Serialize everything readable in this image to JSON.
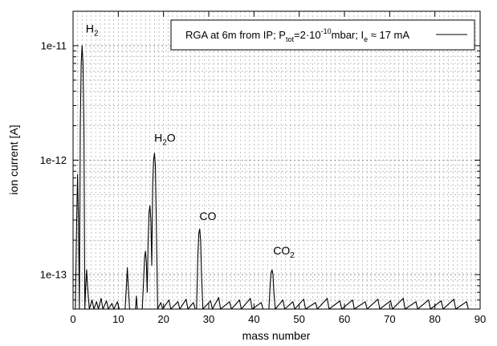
{
  "chart_data": {
    "type": "line",
    "xlabel": "mass number",
    "ylabel": "ion current [A]",
    "xlim": [
      0,
      90
    ],
    "ylim": [
      5e-14,
      2e-11
    ],
    "y_scale": "log",
    "grid": true,
    "legend_position": "top-right",
    "x_ticks": [
      0,
      10,
      20,
      30,
      40,
      50,
      60,
      70,
      80,
      90
    ],
    "x_tick_labels": [
      "0",
      "10",
      "20",
      "30",
      "40",
      "50",
      "60",
      "70",
      "80",
      "90"
    ],
    "y_ticks": [
      1e-13,
      1e-12,
      1e-11
    ],
    "y_tick_labels": [
      "1e-13",
      "1e-12",
      "1e-11"
    ],
    "legend": {
      "text_a": "RGA at 6m from IP;  P",
      "sub_a": "tot",
      "text_b": "=2·10",
      "sup_b": "-10",
      "text_c": "mbar; I",
      "sub_c": "e",
      "text_d": " ≈ 17 mA"
    },
    "annotations": [
      {
        "base": "H",
        "sub": "2",
        "suffix": "",
        "x": 4.2,
        "y": 1.3e-11
      },
      {
        "base": "H",
        "sub": "2",
        "suffix": "O",
        "x": 20.3,
        "y": 1.45e-12
      },
      {
        "base": "CO",
        "sub": "",
        "suffix": "",
        "x": 29.8,
        "y": 3e-13
      },
      {
        "base": "CO",
        "sub": "2",
        "suffix": "",
        "x": 46.6,
        "y": 1.5e-13
      }
    ],
    "peaks": [
      {
        "mass": 1,
        "value": 7.5e-13
      },
      {
        "mass": 2,
        "value": 1e-11
      },
      {
        "mass": 3,
        "value": 1.1e-13
      },
      {
        "mass": 12,
        "value": 1.15e-13
      },
      {
        "mass": 14,
        "value": 6.5e-14
      },
      {
        "mass": 16,
        "value": 1.6e-13
      },
      {
        "mass": 17,
        "value": 4e-13
      },
      {
        "mass": 18,
        "value": 1.15e-12
      },
      {
        "mass": 28,
        "value": 2.5e-13
      },
      {
        "mass": 44,
        "value": 1.1e-13
      }
    ],
    "series": [
      {
        "values": [
          [
            0.5,
            5e-14
          ],
          [
            0.8,
            3e-13
          ],
          [
            1.0,
            7.5e-13
          ],
          [
            1.2,
            3e-13
          ],
          [
            1.4,
            5e-14
          ],
          [
            1.6,
            2e-12
          ],
          [
            1.8,
            7e-12
          ],
          [
            2.0,
            1e-11
          ],
          [
            2.2,
            7e-12
          ],
          [
            2.4,
            2e-12
          ],
          [
            2.6,
            5e-14
          ],
          [
            2.8,
            8e-14
          ],
          [
            3.0,
            1.1e-13
          ],
          [
            3.2,
            8e-14
          ],
          [
            3.4,
            6.2e-14
          ],
          [
            3.6,
            5e-14
          ],
          [
            4.2,
            6e-14
          ],
          [
            4.6,
            5e-14
          ],
          [
            5.2,
            5.8e-14
          ],
          [
            5.6,
            5e-14
          ],
          [
            6.2,
            6.2e-14
          ],
          [
            6.6,
            5e-14
          ],
          [
            7.4,
            5.9e-14
          ],
          [
            7.8,
            5e-14
          ],
          [
            8.6,
            5.6e-14
          ],
          [
            9.0,
            5e-14
          ],
          [
            9.8,
            5.8e-14
          ],
          [
            10.2,
            5e-14
          ],
          [
            11.5,
            5e-14
          ],
          [
            11.8,
            8e-14
          ],
          [
            12.0,
            1.15e-13
          ],
          [
            12.2,
            8e-14
          ],
          [
            12.5,
            5e-14
          ],
          [
            13.8,
            5e-14
          ],
          [
            14.0,
            6.5e-14
          ],
          [
            14.2,
            5e-14
          ],
          [
            15.3,
            5e-14
          ],
          [
            15.6,
            9e-14
          ],
          [
            15.8,
            1.4e-13
          ],
          [
            16.0,
            1.6e-13
          ],
          [
            16.2,
            1.3e-13
          ],
          [
            16.4,
            7e-14
          ],
          [
            16.6,
            2e-13
          ],
          [
            16.8,
            3.5e-13
          ],
          [
            17.0,
            4e-13
          ],
          [
            17.2,
            3e-13
          ],
          [
            17.4,
            1.2e-13
          ],
          [
            17.6,
            6e-13
          ],
          [
            17.8,
            1e-12
          ],
          [
            18.0,
            1.15e-12
          ],
          [
            18.2,
            9e-13
          ],
          [
            18.4,
            3e-13
          ],
          [
            18.7,
            5e-14
          ],
          [
            19.4,
            5.7e-14
          ],
          [
            19.8,
            5e-14
          ],
          [
            21.2,
            6e-14
          ],
          [
            21.6,
            5e-14
          ],
          [
            23.2,
            5.8e-14
          ],
          [
            23.6,
            5e-14
          ],
          [
            25.0,
            6.1e-14
          ],
          [
            25.4,
            5e-14
          ],
          [
            26.6,
            5.7e-14
          ],
          [
            27.0,
            5e-14
          ],
          [
            27.3,
            5e-14
          ],
          [
            27.6,
            1.5e-13
          ],
          [
            27.8,
            2.3e-13
          ],
          [
            28.0,
            2.5e-13
          ],
          [
            28.2,
            2e-13
          ],
          [
            28.4,
            1e-13
          ],
          [
            28.7,
            5e-14
          ],
          [
            30.4,
            5.9e-14
          ],
          [
            30.8,
            5e-14
          ],
          [
            32.2,
            6.3e-14
          ],
          [
            32.6,
            5e-14
          ],
          [
            34.6,
            5.8e-14
          ],
          [
            35.0,
            5e-14
          ],
          [
            36.8,
            6e-14
          ],
          [
            37.2,
            5e-14
          ],
          [
            39.2,
            6.2e-14
          ],
          [
            39.6,
            5e-14
          ],
          [
            41.6,
            5.7e-14
          ],
          [
            42.0,
            5e-14
          ],
          [
            43.3,
            5e-14
          ],
          [
            43.6,
            8.5e-14
          ],
          [
            43.8,
            1.05e-13
          ],
          [
            44.0,
            1.1e-13
          ],
          [
            44.2,
            1e-13
          ],
          [
            44.4,
            7e-14
          ],
          [
            44.7,
            5e-14
          ],
          [
            46.4,
            6e-14
          ],
          [
            46.8,
            5e-14
          ],
          [
            48.6,
            5.8e-14
          ],
          [
            49.0,
            5e-14
          ],
          [
            51.0,
            6.1e-14
          ],
          [
            51.4,
            5e-14
          ],
          [
            53.6,
            5.7e-14
          ],
          [
            54.0,
            5e-14
          ],
          [
            56.2,
            6.2e-14
          ],
          [
            56.6,
            5e-14
          ],
          [
            59.0,
            5.9e-14
          ],
          [
            59.4,
            5e-14
          ],
          [
            61.8,
            6e-14
          ],
          [
            62.2,
            5e-14
          ],
          [
            64.6,
            5.8e-14
          ],
          [
            65.0,
            5e-14
          ],
          [
            67.4,
            6.1e-14
          ],
          [
            67.8,
            5e-14
          ],
          [
            70.2,
            5.9e-14
          ],
          [
            70.6,
            5e-14
          ],
          [
            73.0,
            6.2e-14
          ],
          [
            73.4,
            5e-14
          ],
          [
            75.8,
            5.8e-14
          ],
          [
            76.2,
            5e-14
          ],
          [
            78.6,
            6e-14
          ],
          [
            79.0,
            5e-14
          ],
          [
            81.4,
            5.9e-14
          ],
          [
            81.8,
            5e-14
          ],
          [
            84.2,
            6.1e-14
          ],
          [
            84.6,
            5e-14
          ],
          [
            87.0,
            5.8e-14
          ],
          [
            87.4,
            5e-14
          ],
          [
            89.5,
            5e-14
          ]
        ]
      }
    ]
  }
}
